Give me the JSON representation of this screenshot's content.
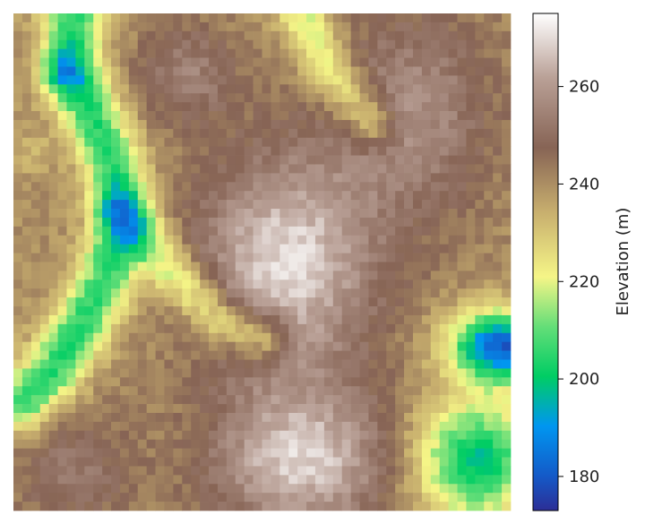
{
  "chart_data": {
    "type": "heatmap",
    "title": "",
    "grid": false,
    "colormap": "terrain",
    "colorbar": {
      "label": "Elevation (m)",
      "vmin": 173,
      "vmax": 275,
      "ticks": [
        180,
        200,
        220,
        240,
        260
      ],
      "tick_labels": [
        "180",
        "200",
        "220",
        "240",
        "260"
      ]
    },
    "grid_size": [
      56,
      56
    ],
    "elevation_range": [
      174,
      272
    ],
    "features": {
      "highlands": [
        "center",
        "bottom-center",
        "top-right",
        "top-left interior"
      ],
      "lowlands": [
        "left channel (green)",
        "top-left blue pocket",
        "right-middle blue depression",
        "bottom-right green basin"
      ]
    }
  }
}
